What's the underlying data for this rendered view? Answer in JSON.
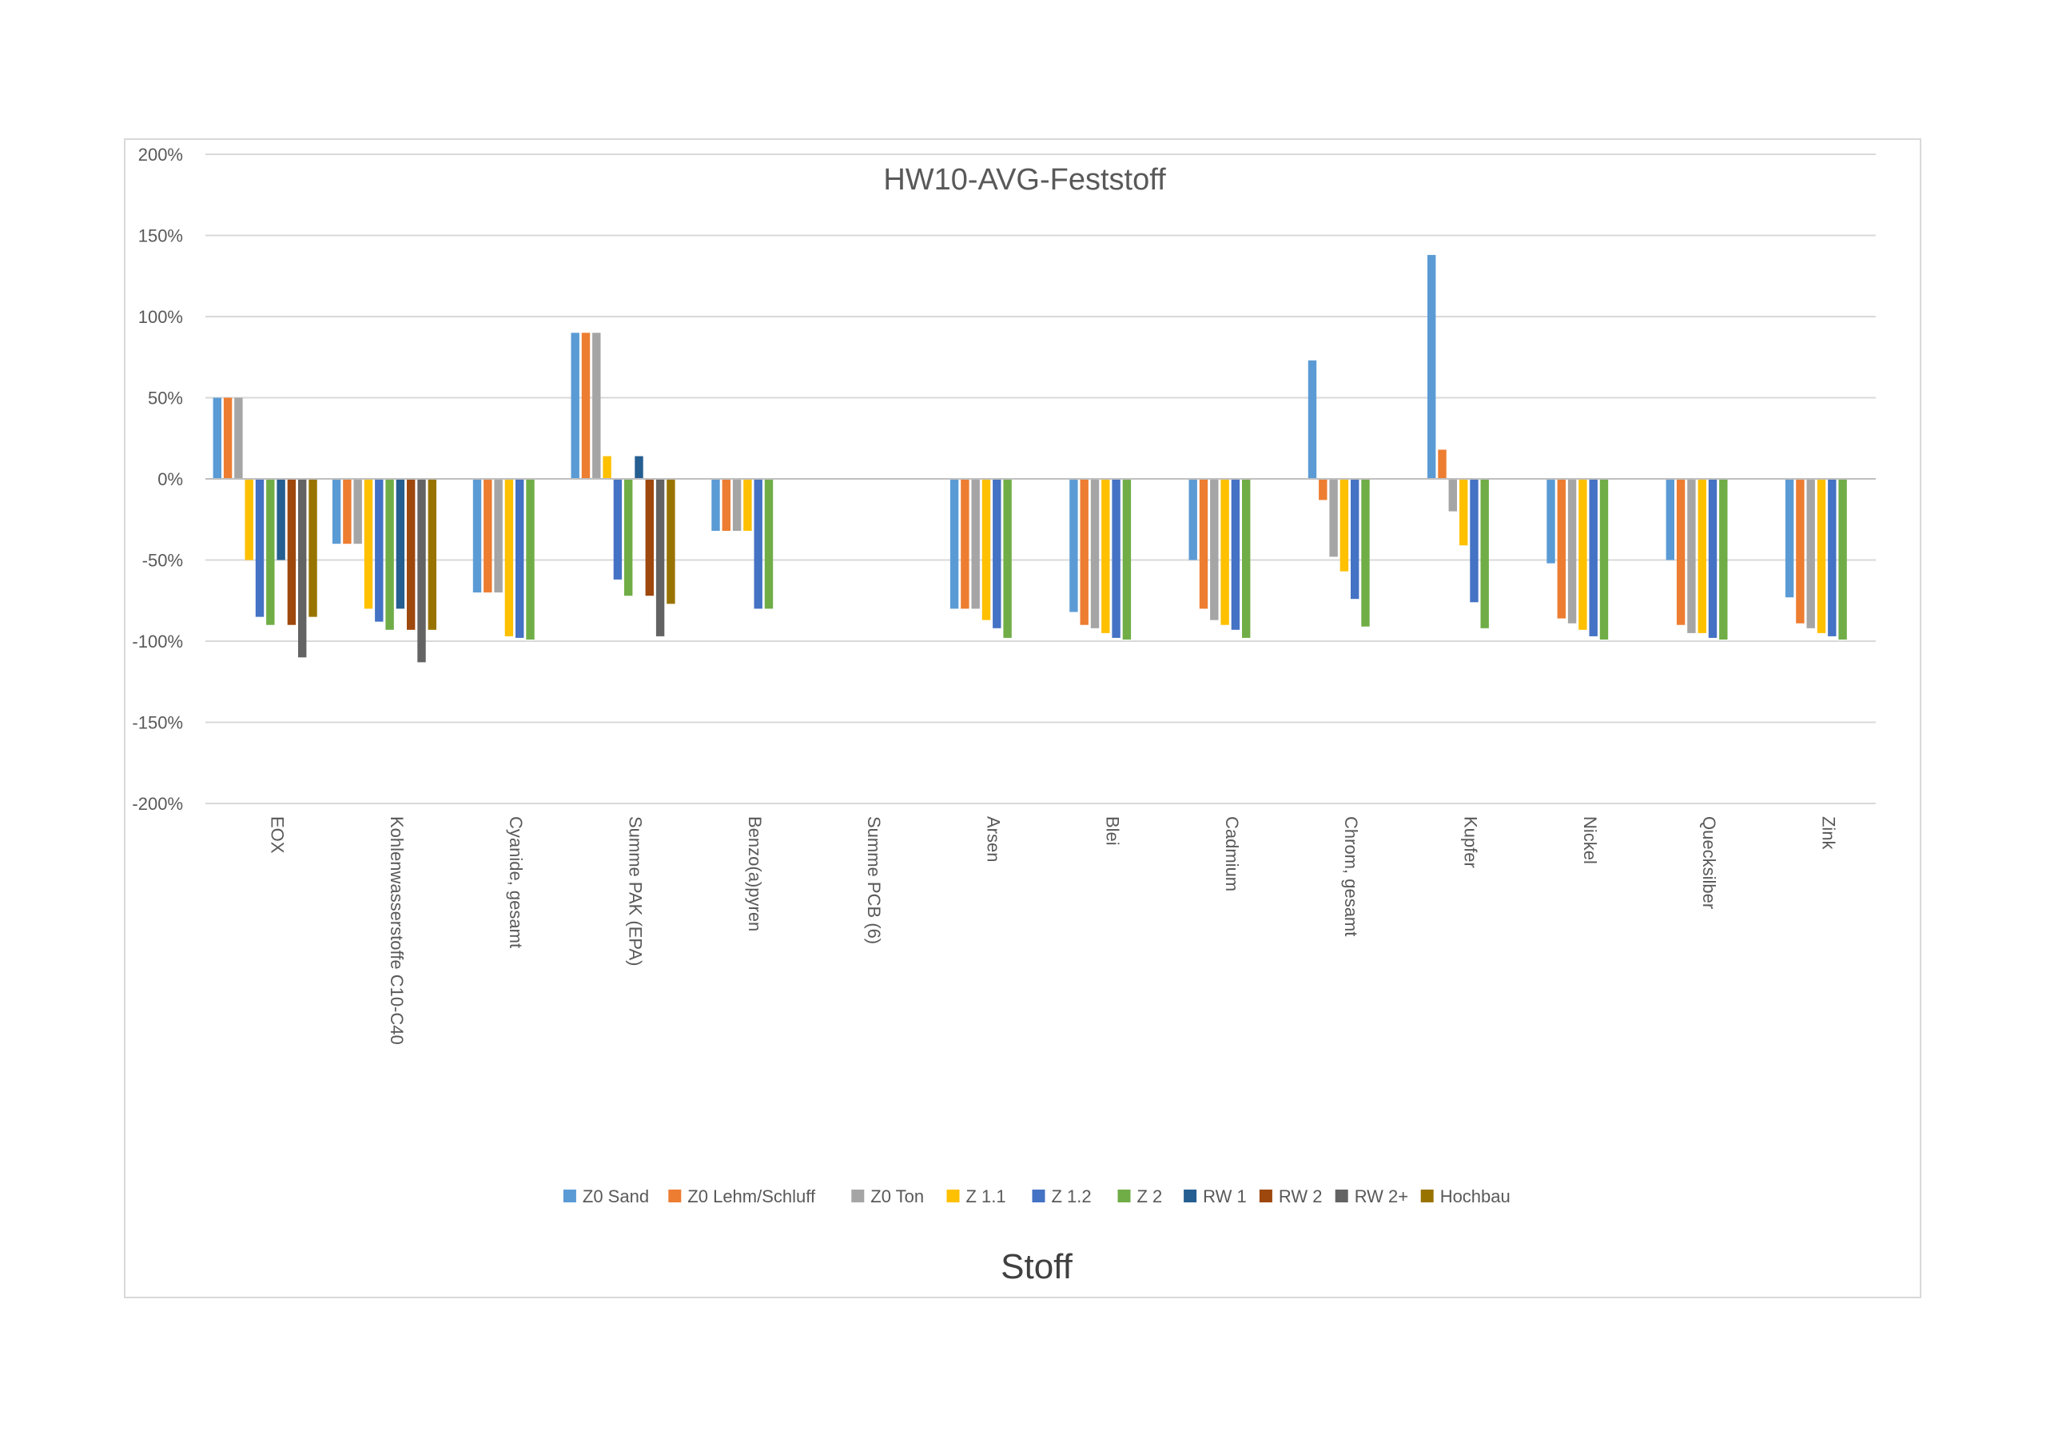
{
  "chart_data": {
    "type": "bar",
    "title": "HW10-AVG-Feststoff",
    "xlabel": "Stoff",
    "ylabel": "",
    "ylim": [
      -2.0,
      2.0
    ],
    "y_ticks": [
      2.0,
      1.5,
      1.0,
      0.5,
      0.0,
      -0.5,
      -1.0,
      -1.5,
      -2.0
    ],
    "y_tick_labels": [
      "200%",
      "150%",
      "100%",
      "50%",
      "0%",
      "-50%",
      "-100%",
      "-150%",
      "-200%"
    ],
    "grid": true,
    "legend_position": "bottom",
    "categories": [
      "EOX",
      "Kohlenwasserstoffe C10-C40",
      "Cyanide, gesamt",
      "Summe PAK (EPA)",
      "Benzo(a)pyren",
      "Summe PCB (6)",
      "Arsen",
      "Blei",
      "Cadmium",
      "Chrom, gesamt",
      "Kupfer",
      "Nickel",
      "Quecksilber",
      "Zink"
    ],
    "series": [
      {
        "name": "Z0 Sand",
        "color": "#5b9bd5",
        "values": [
          0.5,
          -0.4,
          -0.7,
          0.9,
          -0.32,
          null,
          -0.8,
          -0.82,
          -0.5,
          0.73,
          1.38,
          -0.52,
          -0.5,
          -0.73
        ]
      },
      {
        "name": "Z0 Lehm/Schluff",
        "color": "#ed7d31",
        "values": [
          0.5,
          -0.4,
          -0.7,
          0.9,
          -0.32,
          null,
          -0.8,
          -0.9,
          -0.8,
          -0.13,
          0.18,
          -0.86,
          -0.9,
          -0.89
        ]
      },
      {
        "name": "Z0 Ton",
        "color": "#a5a5a5",
        "values": [
          0.5,
          -0.4,
          -0.7,
          0.9,
          -0.32,
          null,
          -0.8,
          -0.92,
          -0.87,
          -0.48,
          -0.2,
          -0.89,
          -0.95,
          -0.92
        ]
      },
      {
        "name": "Z 1.1",
        "color": "#ffc000",
        "values": [
          -0.5,
          -0.8,
          -0.97,
          0.14,
          -0.32,
          null,
          -0.87,
          -0.95,
          -0.9,
          -0.57,
          -0.41,
          -0.93,
          -0.95,
          -0.95
        ]
      },
      {
        "name": "Z 1.2",
        "color": "#4472c4",
        "values": [
          -0.85,
          -0.88,
          -0.98,
          -0.62,
          -0.8,
          null,
          -0.92,
          -0.98,
          -0.93,
          -0.74,
          -0.76,
          -0.97,
          -0.98,
          -0.97
        ]
      },
      {
        "name": "Z 2",
        "color": "#70ad47",
        "values": [
          -0.9,
          -0.93,
          -0.99,
          -0.72,
          -0.8,
          null,
          -0.98,
          -0.99,
          -0.98,
          -0.91,
          -0.92,
          -0.99,
          -0.99,
          -0.99
        ]
      },
      {
        "name": "RW 1",
        "color": "#255e91",
        "values": [
          -0.5,
          -0.8,
          null,
          0.14,
          null,
          null,
          null,
          null,
          null,
          null,
          null,
          null,
          null,
          null
        ]
      },
      {
        "name": "RW 2",
        "color": "#9e480e",
        "values": [
          -0.9,
          -0.93,
          null,
          -0.72,
          null,
          null,
          null,
          null,
          null,
          null,
          null,
          null,
          null,
          null
        ]
      },
      {
        "name": "RW 2+",
        "color": "#636363",
        "values": [
          -1.1,
          -1.13,
          null,
          -0.97,
          null,
          null,
          null,
          null,
          null,
          null,
          null,
          null,
          null,
          null
        ]
      },
      {
        "name": "Hochbau",
        "color": "#997300",
        "values": [
          -0.85,
          -0.93,
          null,
          -0.77,
          null,
          null,
          null,
          null,
          null,
          null,
          null,
          null,
          null,
          null
        ]
      }
    ]
  }
}
